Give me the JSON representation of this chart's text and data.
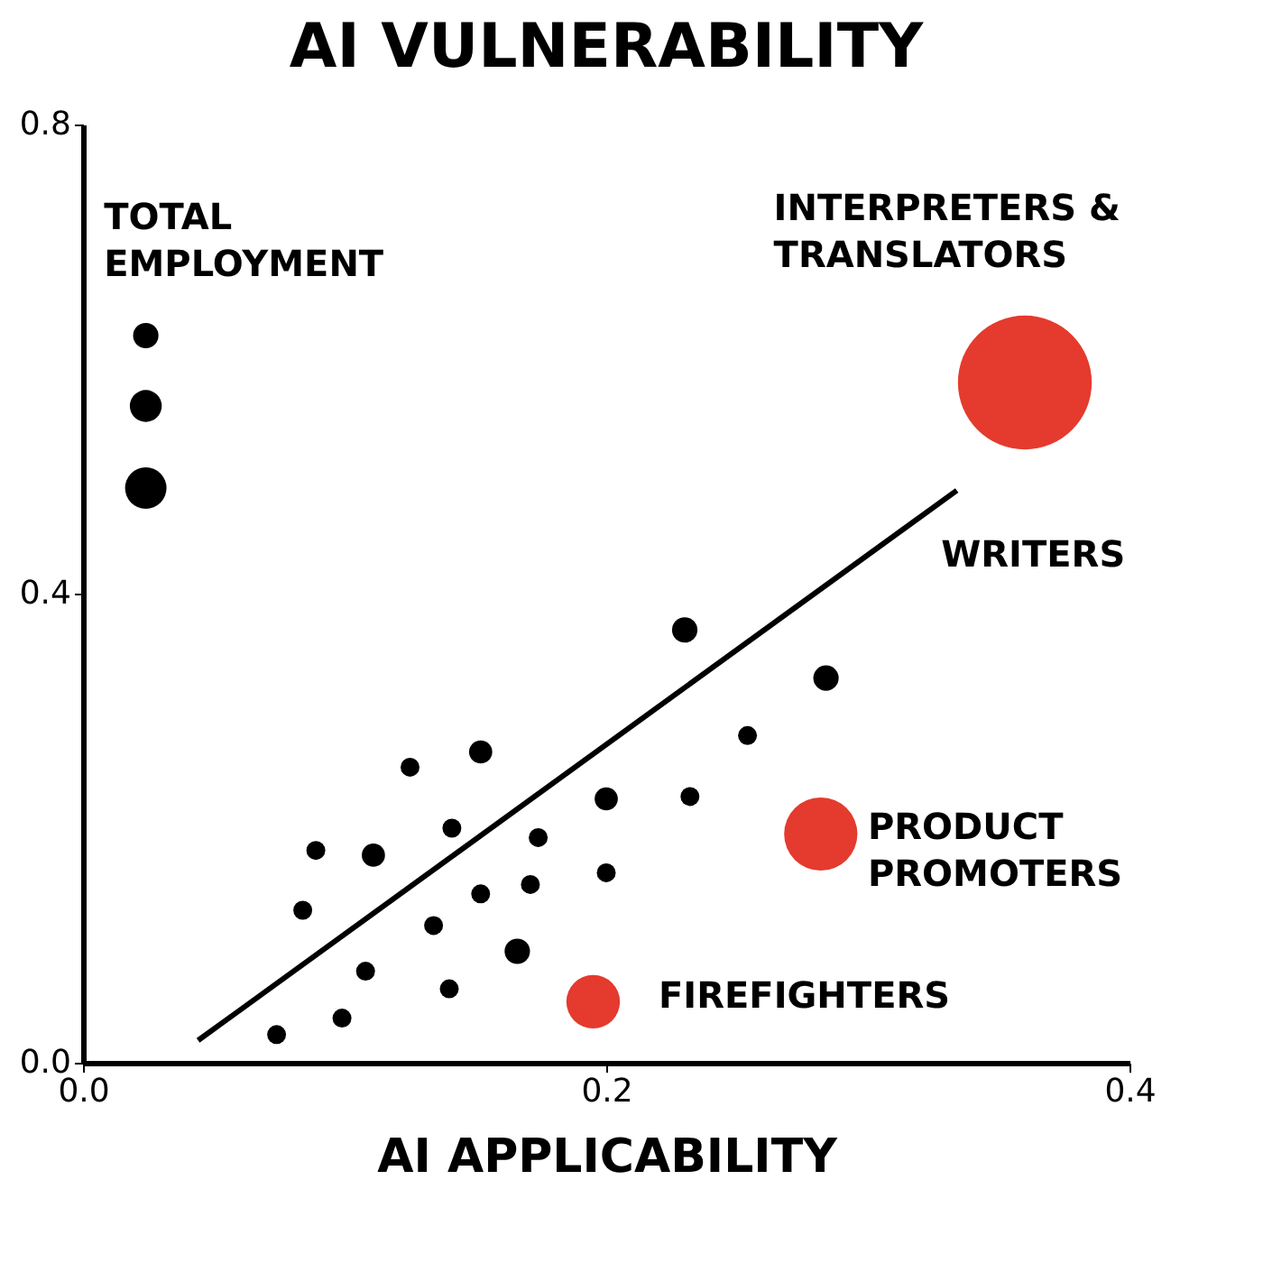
{
  "chart_data": {
    "type": "bubble",
    "title": "AI VULNERABILITY",
    "xlabel": "AI APPLICABILITY",
    "xlim": [
      0,
      0.4
    ],
    "ylim": [
      0,
      0.8
    ],
    "xticks": [
      {
        "value": 0,
        "label": "0.0"
      },
      {
        "value": 0.2,
        "label": "0.2"
      },
      {
        "value": 0.4,
        "label": "0.4"
      }
    ],
    "yticks": [
      {
        "value": 0,
        "label": "0.0"
      },
      {
        "value": 0.4,
        "label": "0.4"
      },
      {
        "value": 0.8,
        "label": "0.8"
      }
    ],
    "grid": false,
    "marker": "circle",
    "series": [
      {
        "color": "#000000",
        "x": [
          0.074,
          0.099,
          0.108,
          0.084,
          0.089,
          0.111,
          0.125,
          0.134,
          0.14,
          0.141,
          0.152,
          0.152,
          0.166,
          0.171,
          0.174,
          0.2,
          0.2,
          0.232,
          0.23,
          0.254,
          0.284
        ],
        "values": [
          0.024,
          0.038,
          0.078,
          0.13,
          0.181,
          0.177,
          0.252,
          0.117,
          0.063,
          0.2,
          0.265,
          0.144,
          0.095,
          0.152,
          0.192,
          0.225,
          0.162,
          0.227,
          0.369,
          0.279,
          0.328
        ],
        "sizes": [
          0.02,
          0.02,
          0.02,
          0.02,
          0.02,
          0.03,
          0.02,
          0.02,
          0.02,
          0.02,
          0.03,
          0.02,
          0.036,
          0.02,
          0.02,
          0.03,
          0.02,
          0.02,
          0.036,
          0.02,
          0.036
        ]
      },
      {
        "color": "#e53a2e",
        "x": [
          0.36,
          0.282,
          0.195
        ],
        "values": [
          0.58,
          0.195,
          0.052
        ],
        "sizes": [
          1,
          0.3,
          0.16
        ]
      },
      {
        "color": "#000000",
        "x": [
          0.024,
          0.024,
          0.024
        ],
        "values": [
          0.62,
          0.56,
          0.49
        ],
        "sizes": [
          0.036,
          0.057,
          0.096
        ]
      },
      {
        "type": "line",
        "marker": "none",
        "color": "#000000",
        "x": [
          0.044,
          0.334
        ],
        "values": [
          0.019,
          0.488
        ]
      }
    ],
    "annotations": [
      "TOTAL\nEMPLOYMENT",
      "INTERPRETERS &\nTRANSLATORS",
      "WRITERS",
      "PRODUCT\nPROMOTERS",
      "FIREFIGHTERS"
    ]
  }
}
